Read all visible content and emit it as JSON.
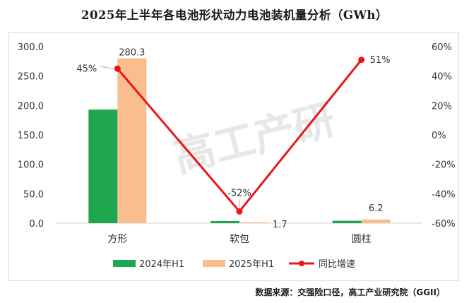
{
  "title": "2025年上半年各电池形状动力电池装机量分析（GWh）",
  "source": "数据来源：交强险口径，高工产业研究院（GGII）",
  "watermark": "高工产研",
  "colors": {
    "s2024": "#1fa74f",
    "s2025": "#f8be8f",
    "yoy": "#e8171a"
  },
  "chart_data": {
    "type": "bar",
    "categories": [
      "方形",
      "软包",
      "圆柱"
    ],
    "series": [
      {
        "name": "2024年H1",
        "type": "bar",
        "axis": "left",
        "values": [
          193.0,
          3.6,
          4.1
        ],
        "labels": [
          "",
          "",
          ""
        ]
      },
      {
        "name": "2025年H1",
        "type": "bar",
        "axis": "left",
        "values": [
          280.3,
          1.7,
          6.2
        ],
        "labels": [
          "280.3",
          "1.7",
          "6.2"
        ]
      },
      {
        "name": "同比增速",
        "type": "line",
        "axis": "right",
        "values": [
          45,
          -52,
          51
        ],
        "labels": [
          "45%",
          "-52%",
          "51%"
        ]
      }
    ],
    "y_left": {
      "min": 0,
      "max": 300,
      "ticks": [
        "0.0",
        "50.0",
        "100.0",
        "150.0",
        "200.0",
        "250.0",
        "300.0"
      ]
    },
    "y_right": {
      "min": -60,
      "max": 60,
      "ticks": [
        "-60%",
        "-40%",
        "-20%",
        "0%",
        "20%",
        "40%",
        "60%"
      ]
    },
    "grid": false,
    "legend_position": "bottom"
  }
}
